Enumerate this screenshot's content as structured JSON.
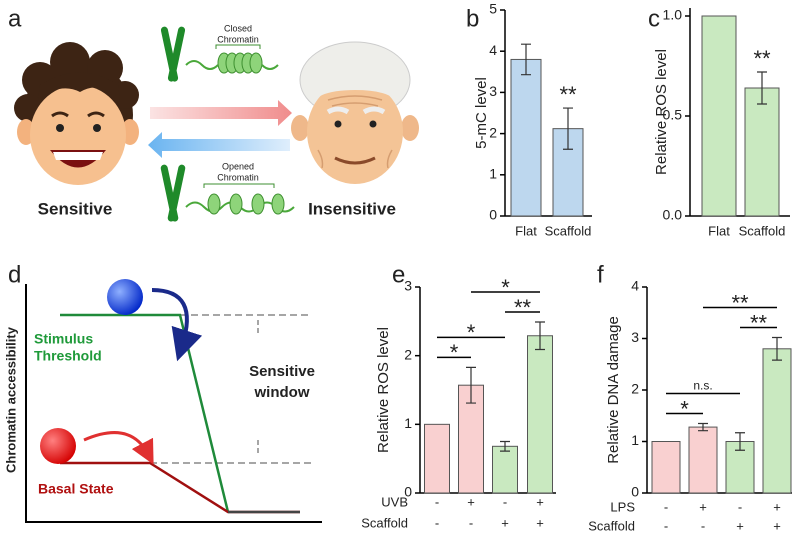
{
  "panel_labels": [
    "a",
    "b",
    "c",
    "d",
    "e",
    "f"
  ],
  "diagram_a": {
    "closed_chromatin": [
      "Closed",
      "Chromatin"
    ],
    "opened_chromatin": [
      "Opened",
      "Chromatin"
    ],
    "left_face": "Sensitive",
    "right_face": "Insensitive"
  },
  "diagram_d": {
    "y_axis_label": "Chromatin accessibility",
    "threshold": [
      "Stimulus",
      "Threshold"
    ],
    "basal": "Basal State",
    "window": [
      "Sensitive",
      "window"
    ]
  },
  "chart_data": [
    {
      "type": "bar",
      "ylabel": "5-mC level",
      "categories": [
        "Flat",
        "Scaffold"
      ],
      "values": [
        3.8,
        2.12
      ],
      "errors": [
        0.37,
        0.5
      ],
      "color": "#bdd7ee",
      "significance": [
        null,
        "**"
      ],
      "ylim": [
        0,
        5
      ],
      "yticks": [
        0,
        1,
        2,
        3,
        4,
        5
      ]
    },
    {
      "type": "bar",
      "ylabel": "Relative ROS level",
      "categories": [
        "Flat",
        "Scaffold"
      ],
      "values": [
        1,
        0.64
      ],
      "errors": [
        null,
        0.08
      ],
      "color": "#c9e9c0",
      "significance": [
        null,
        "**"
      ],
      "ylim": [
        0,
        1.04
      ],
      "yticks": [
        {
          "value": 0,
          "label": "0.0"
        },
        {
          "value": 0.5,
          "label": "0.5"
        },
        {
          "value": 1,
          "label": "1.0"
        }
      ]
    },
    {
      "type": "bar",
      "ylabel": "Relative ROS level",
      "condition_rows": [
        {
          "name": "UVB",
          "values": [
            "-",
            "+",
            "-",
            "+"
          ]
        },
        {
          "name": "Scaffold",
          "values": [
            "-",
            "-",
            "+",
            "+"
          ]
        }
      ],
      "values": [
        1,
        1.57,
        0.68,
        2.29
      ],
      "errors": [
        null,
        0.26,
        0.07,
        0.2
      ],
      "colors": [
        "#f9d0d0",
        "#f9d0d0",
        "#c9e9c0",
        "#c9e9c0"
      ],
      "comparisons": [
        {
          "pair": [
            0,
            1
          ],
          "text": "*"
        },
        {
          "pair": [
            0,
            2
          ],
          "text": "*"
        },
        {
          "pair": [
            2,
            3
          ],
          "text": "**"
        },
        {
          "pair": [
            1,
            3
          ],
          "text": "*"
        }
      ],
      "ylim": [
        0,
        3
      ],
      "yticks": [
        0,
        1,
        2,
        3
      ]
    },
    {
      "type": "bar",
      "ylabel": "Relative DNA damage",
      "condition_rows": [
        {
          "name": "LPS",
          "values": [
            "-",
            "+",
            "-",
            "+"
          ]
        },
        {
          "name": "Scaffold",
          "values": [
            "-",
            "-",
            "+",
            "+"
          ]
        }
      ],
      "values": [
        1,
        1.28,
        1,
        2.8
      ],
      "errors": [
        null,
        0.07,
        0.17,
        0.22
      ],
      "colors": [
        "#f9d0d0",
        "#f9d0d0",
        "#c9e9c0",
        "#c9e9c0"
      ],
      "comparisons": [
        {
          "pair": [
            0,
            1
          ],
          "text": "*"
        },
        {
          "pair": [
            0,
            2
          ],
          "text": "n.s."
        },
        {
          "pair": [
            2,
            3
          ],
          "text": "**"
        },
        {
          "pair": [
            1,
            3
          ],
          "text": "**"
        }
      ],
      "ylim": [
        0,
        4
      ],
      "yticks": [
        0,
        1,
        2,
        3,
        4
      ]
    }
  ]
}
